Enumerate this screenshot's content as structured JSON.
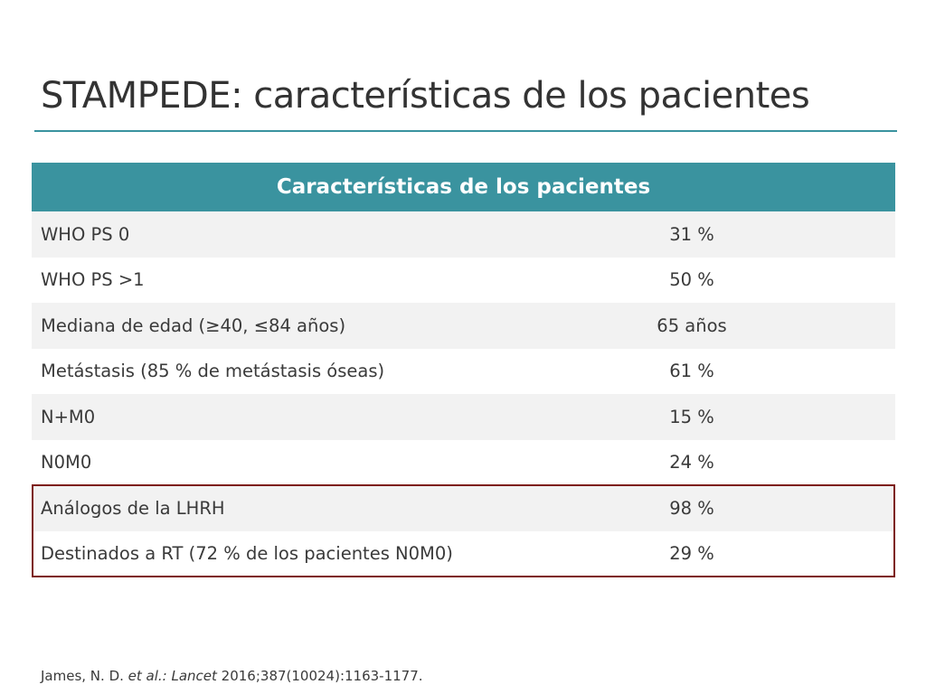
{
  "slide": {
    "title": "STAMPEDE: características de los pacientes"
  },
  "table": {
    "header": "Características de los pacientes",
    "rows": [
      {
        "label": "WHO PS 0",
        "value": "31 %"
      },
      {
        "label": "WHO PS >1",
        "value": "50 %"
      },
      {
        "label": "Mediana de edad (≥40, ≤84 años)",
        "value": "65 años"
      },
      {
        "label": "Metástasis (85 % de metástasis óseas)",
        "value": "61 %"
      },
      {
        "label": "N+M0",
        "value": "15 %"
      },
      {
        "label": "N0M0",
        "value": "24 %"
      },
      {
        "label": "Análogos de la LHRH",
        "value": "98 %"
      },
      {
        "label": "Destinados a RT (72 % de los pacientes N0M0)",
        "value": "29 %"
      }
    ]
  },
  "citation": {
    "authors": "James, N. D. ",
    "etal": "et al.: Lancet",
    "ref": " 2016;387(10024):1163-1177."
  },
  "colors": {
    "header_bg": "#3a939f",
    "highlight_border": "#7d1a14",
    "row_alt": "#f2f2f2"
  }
}
